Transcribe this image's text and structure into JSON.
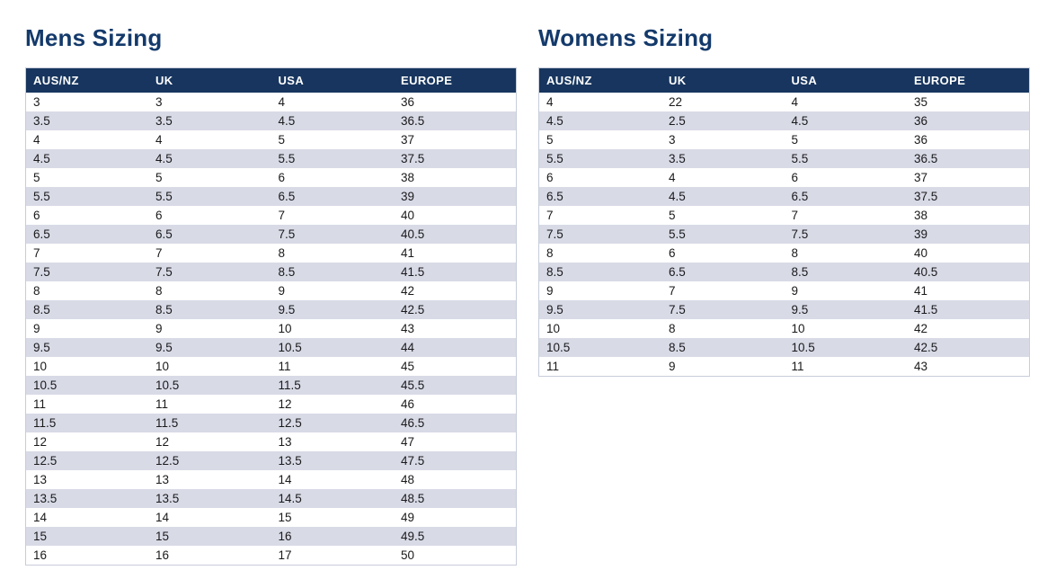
{
  "colors": {
    "title": "#143a6b",
    "header_bg": "#17355e",
    "header_text": "#ffffff",
    "row_alt": "#d8dae6",
    "cell_text": "#1a1a1c",
    "table_border": "#c7cdda"
  },
  "mens": {
    "title": "Mens Sizing",
    "columns": [
      "AUS/NZ",
      "UK",
      "USA",
      "EUROPE"
    ],
    "rows": [
      [
        "3",
        "3",
        "4",
        "36"
      ],
      [
        "3.5",
        "3.5",
        "4.5",
        "36.5"
      ],
      [
        "4",
        "4",
        "5",
        "37"
      ],
      [
        "4.5",
        "4.5",
        "5.5",
        "37.5"
      ],
      [
        "5",
        "5",
        "6",
        "38"
      ],
      [
        "5.5",
        "5.5",
        "6.5",
        "39"
      ],
      [
        "6",
        "6",
        "7",
        "40"
      ],
      [
        "6.5",
        "6.5",
        "7.5",
        "40.5"
      ],
      [
        "7",
        "7",
        "8",
        "41"
      ],
      [
        "7.5",
        "7.5",
        "8.5",
        "41.5"
      ],
      [
        "8",
        "8",
        "9",
        "42"
      ],
      [
        "8.5",
        "8.5",
        "9.5",
        "42.5"
      ],
      [
        "9",
        "9",
        "10",
        "43"
      ],
      [
        "9.5",
        "9.5",
        "10.5",
        "44"
      ],
      [
        "10",
        "10",
        "11",
        "45"
      ],
      [
        "10.5",
        "10.5",
        "11.5",
        "45.5"
      ],
      [
        "11",
        "11",
        "12",
        "46"
      ],
      [
        "11.5",
        "11.5",
        "12.5",
        "46.5"
      ],
      [
        "12",
        "12",
        "13",
        "47"
      ],
      [
        "12.5",
        "12.5",
        "13.5",
        "47.5"
      ],
      [
        "13",
        "13",
        "14",
        "48"
      ],
      [
        "13.5",
        "13.5",
        "14.5",
        "48.5"
      ],
      [
        "14",
        "14",
        "15",
        "49"
      ],
      [
        "15",
        "15",
        "16",
        "49.5"
      ],
      [
        "16",
        "16",
        "17",
        "50"
      ]
    ]
  },
  "womens": {
    "title": "Womens Sizing",
    "columns": [
      "AUS/NZ",
      "UK",
      "USA",
      "EUROPE"
    ],
    "rows": [
      [
        "4",
        "22",
        "4",
        "35"
      ],
      [
        "4.5",
        "2.5",
        "4.5",
        "36"
      ],
      [
        "5",
        "3",
        "5",
        "36"
      ],
      [
        "5.5",
        "3.5",
        "5.5",
        "36.5"
      ],
      [
        "6",
        "4",
        "6",
        "37"
      ],
      [
        "6.5",
        "4.5",
        "6.5",
        "37.5"
      ],
      [
        "7",
        "5",
        "7",
        "38"
      ],
      [
        "7.5",
        "5.5",
        "7.5",
        "39"
      ],
      [
        "8",
        "6",
        "8",
        "40"
      ],
      [
        "8.5",
        "6.5",
        "8.5",
        "40.5"
      ],
      [
        "9",
        "7",
        "9",
        "41"
      ],
      [
        "9.5",
        "7.5",
        "9.5",
        "41.5"
      ],
      [
        "10",
        "8",
        "10",
        "42"
      ],
      [
        "10.5",
        "8.5",
        "10.5",
        "42.5"
      ],
      [
        "11",
        "9",
        "11",
        "43"
      ]
    ]
  }
}
